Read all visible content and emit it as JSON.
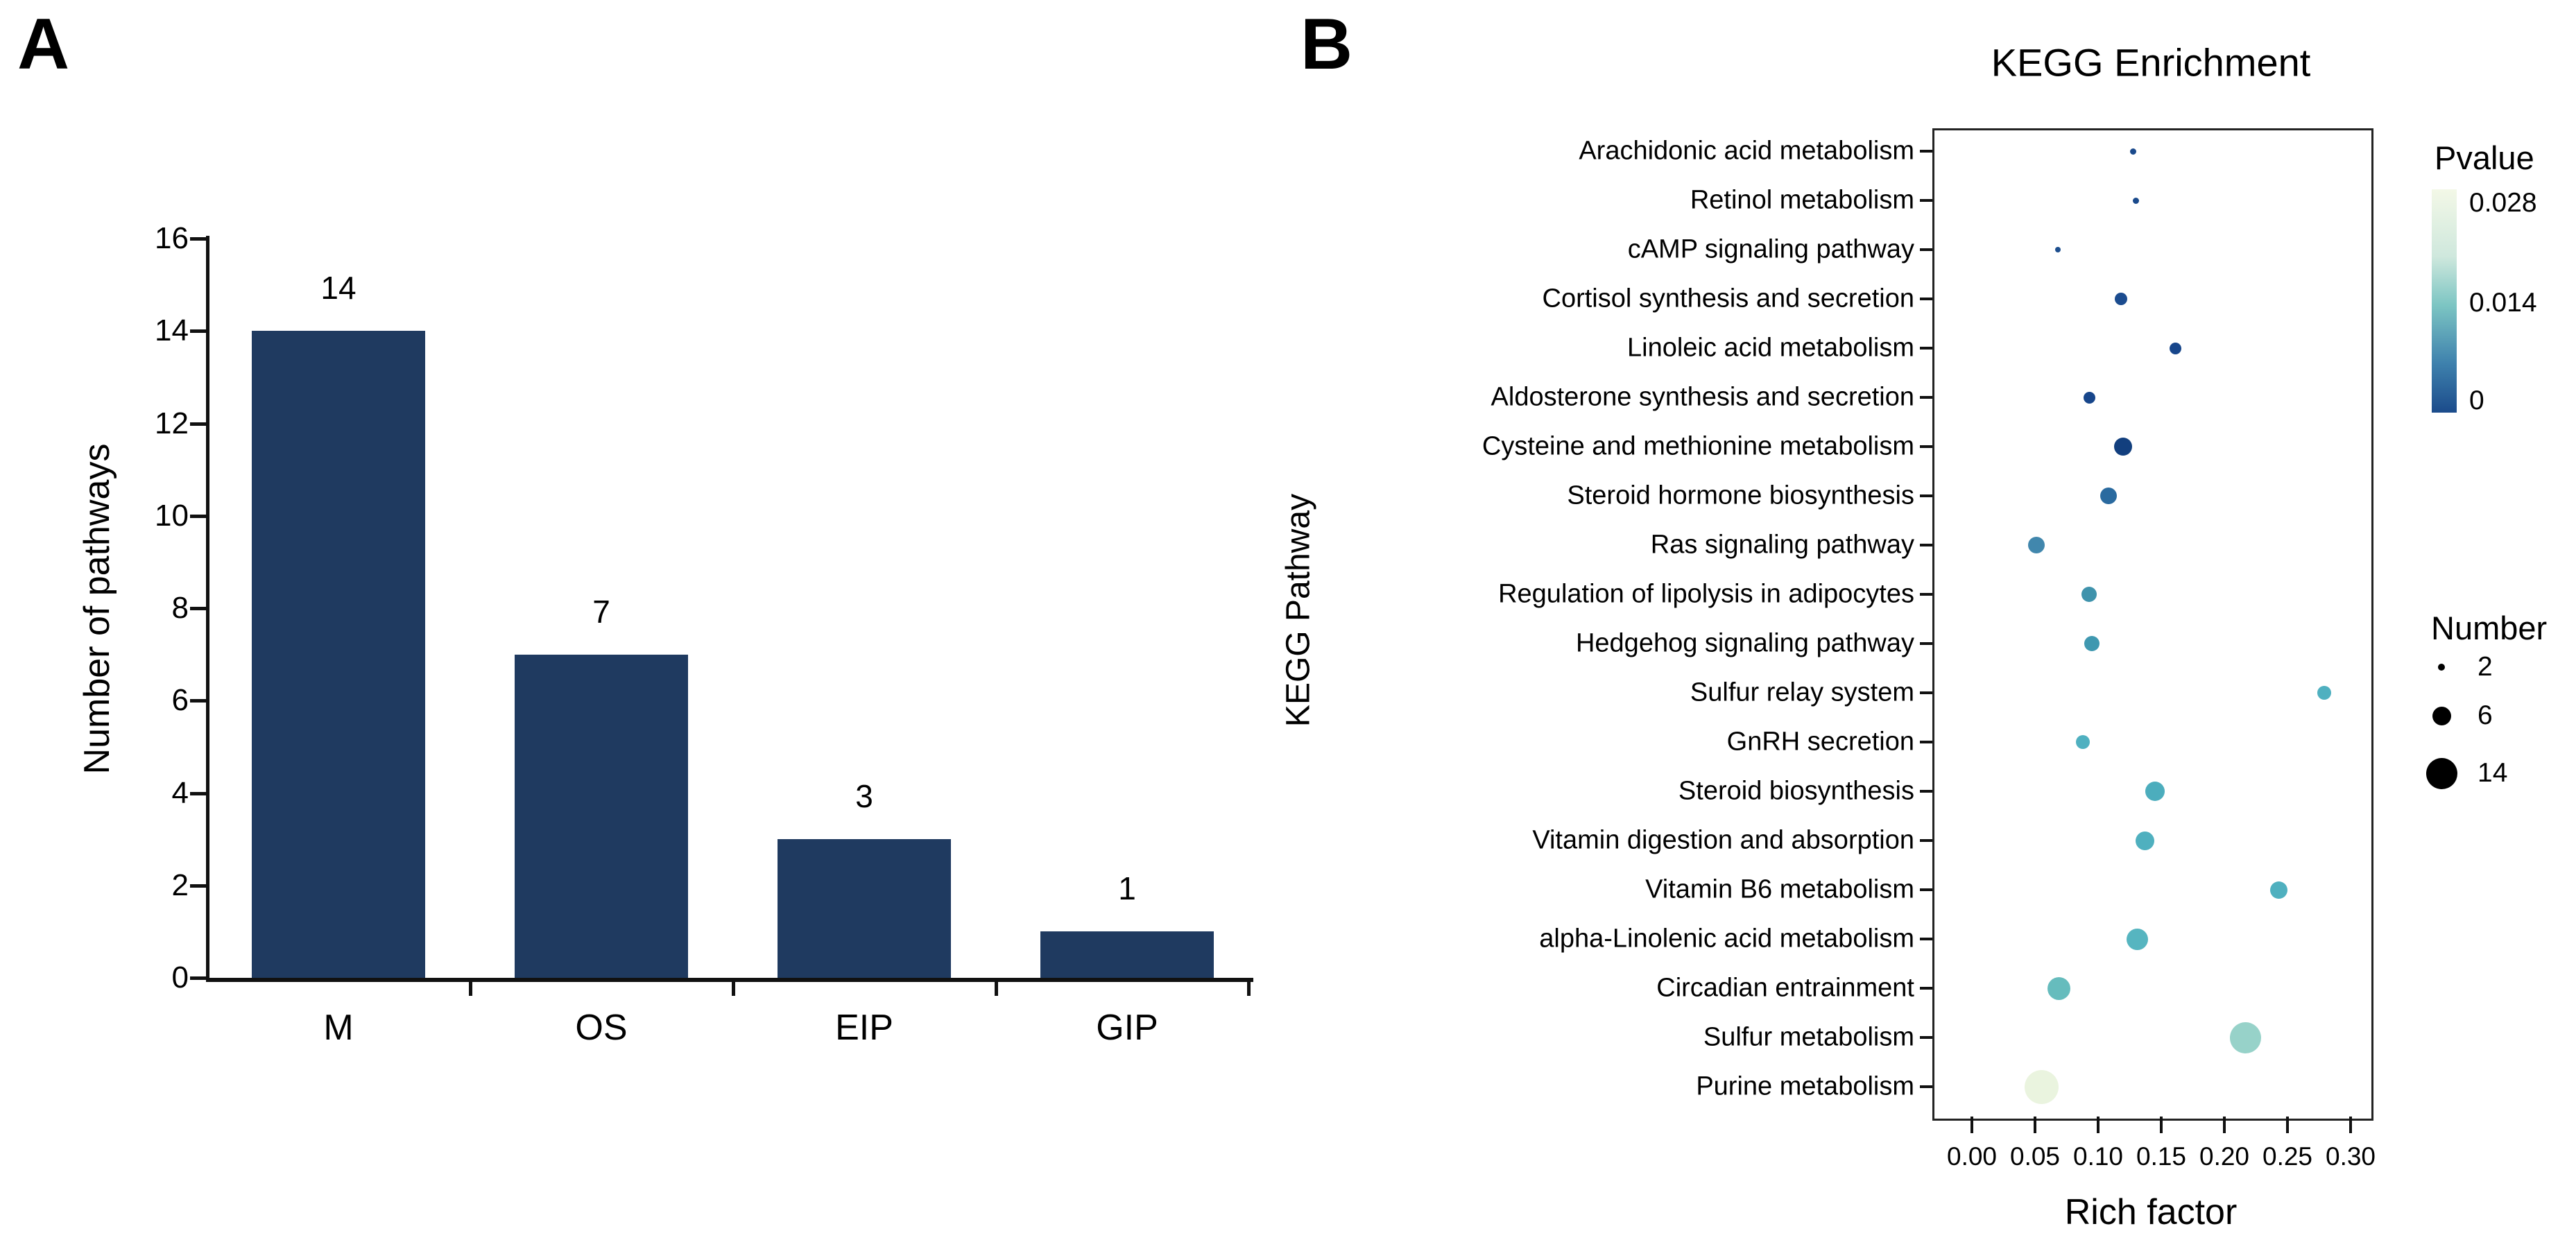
{
  "figure": {
    "panel_a_letter": "A",
    "panel_b_letter": "B"
  },
  "chart_data": [
    {
      "type": "bar",
      "panel_label": "A",
      "title": "",
      "xlabel": "",
      "ylabel": "Number of pathways",
      "categories": [
        "M",
        "OS",
        "EIP",
        "GIP"
      ],
      "values": [
        14,
        7,
        3,
        1
      ],
      "value_labels": [
        "14",
        "7",
        "3",
        "1"
      ],
      "ylim": [
        0,
        16
      ],
      "ytick_step": 2,
      "ytick_labels": [
        "0",
        "2",
        "4",
        "6",
        "8",
        "10",
        "12",
        "14",
        "16"
      ],
      "bar_color": "#1f3a60",
      "grid": "off",
      "legend_position": "none"
    },
    {
      "type": "scatter",
      "panel_label": "B",
      "title": "KEGG Enrichment",
      "xlabel": "Rich factor",
      "ylabel": "KEGG Pathway",
      "xlim": [
        0.0,
        0.3
      ],
      "xtick_labels": [
        "0.00",
        "0.05",
        "0.10",
        "0.15",
        "0.20",
        "0.25",
        "0.30"
      ],
      "grid": "off",
      "points": [
        {
          "pathway": "Arachidonic acid metabolism",
          "rich_factor": 0.128,
          "number": 2,
          "pvalue": 0.002,
          "color": "#1a4a8c",
          "diameter": 9
        },
        {
          "pathway": "Retinol metabolism",
          "rich_factor": 0.13,
          "number": 2,
          "pvalue": 0.002,
          "color": "#1a4a8c",
          "diameter": 9
        },
        {
          "pathway": "cAMP signaling pathway",
          "rich_factor": 0.068,
          "number": 2,
          "pvalue": 0.003,
          "color": "#1d4e8e",
          "diameter": 8
        },
        {
          "pathway": "Cortisol synthesis and secretion",
          "rich_factor": 0.118,
          "number": 3,
          "pvalue": 0.002,
          "color": "#1b4c8f",
          "diameter": 18
        },
        {
          "pathway": "Linoleic acid metabolism",
          "rich_factor": 0.161,
          "number": 3,
          "pvalue": 0.002,
          "color": "#17468b",
          "diameter": 17
        },
        {
          "pathway": "Aldosterone synthesis and secretion",
          "rich_factor": 0.093,
          "number": 3,
          "pvalue": 0.002,
          "color": "#17468b",
          "diameter": 17
        },
        {
          "pathway": "Cysteine and methionine metabolism",
          "rich_factor": 0.12,
          "number": 6,
          "pvalue": 0.001,
          "color": "#123f7e",
          "diameter": 26
        },
        {
          "pathway": "Steroid hormone biosynthesis",
          "rich_factor": 0.108,
          "number": 5,
          "pvalue": 0.005,
          "color": "#2a6a9f",
          "diameter": 24
        },
        {
          "pathway": "Ras signaling pathway",
          "rich_factor": 0.051,
          "number": 5,
          "pvalue": 0.007,
          "color": "#4187ad",
          "diameter": 24
        },
        {
          "pathway": "Regulation of lipolysis in adipocytes",
          "rich_factor": 0.093,
          "number": 4,
          "pvalue": 0.008,
          "color": "#3f93ac",
          "diameter": 22
        },
        {
          "pathway": "Hedgehog signaling pathway",
          "rich_factor": 0.095,
          "number": 4,
          "pvalue": 0.009,
          "color": "#3f98b0",
          "diameter": 22
        },
        {
          "pathway": "Sulfur relay system",
          "rich_factor": 0.279,
          "number": 4,
          "pvalue": 0.012,
          "color": "#4fb0c0",
          "diameter": 20
        },
        {
          "pathway": "GnRH secretion",
          "rich_factor": 0.088,
          "number": 4,
          "pvalue": 0.012,
          "color": "#4fb0c0",
          "diameter": 20
        },
        {
          "pathway": "Steroid biosynthesis",
          "rich_factor": 0.145,
          "number": 6,
          "pvalue": 0.013,
          "color": "#4cadbd",
          "diameter": 28
        },
        {
          "pathway": "Vitamin digestion and absorption",
          "rich_factor": 0.137,
          "number": 6,
          "pvalue": 0.013,
          "color": "#4fb0bf",
          "diameter": 27
        },
        {
          "pathway": "Vitamin B6 metabolism",
          "rich_factor": 0.243,
          "number": 5,
          "pvalue": 0.013,
          "color": "#4fb0bf",
          "diameter": 25
        },
        {
          "pathway": "alpha-Linolenic acid metabolism",
          "rich_factor": 0.131,
          "number": 7,
          "pvalue": 0.014,
          "color": "#56b5c0",
          "diameter": 31
        },
        {
          "pathway": "Circadian entrainment",
          "rich_factor": 0.069,
          "number": 8,
          "pvalue": 0.015,
          "color": "#66bcbd",
          "diameter": 33
        },
        {
          "pathway": "Sulfur metabolism",
          "rich_factor": 0.217,
          "number": 13,
          "pvalue": 0.021,
          "color": "#97d2c9",
          "diameter": 45
        },
        {
          "pathway": "Purine metabolism",
          "rich_factor": 0.055,
          "number": 14,
          "pvalue": 0.028,
          "color": "#eaf4df",
          "diameter": 49
        }
      ],
      "legend_pvalue": {
        "title": "Pvalue",
        "labels": [
          "0.028",
          "0.014",
          "0"
        ],
        "gradient_top_to_bottom": [
          "#f3f8e7",
          "#cfe8dd",
          "#7cc5c3",
          "#3e81ad",
          "#1b4b8b"
        ]
      },
      "legend_number": {
        "title": "Number",
        "entries": [
          {
            "label": "2",
            "diameter": 10
          },
          {
            "label": "6",
            "diameter": 27
          },
          {
            "label": "14",
            "diameter": 45
          }
        ]
      }
    }
  ]
}
